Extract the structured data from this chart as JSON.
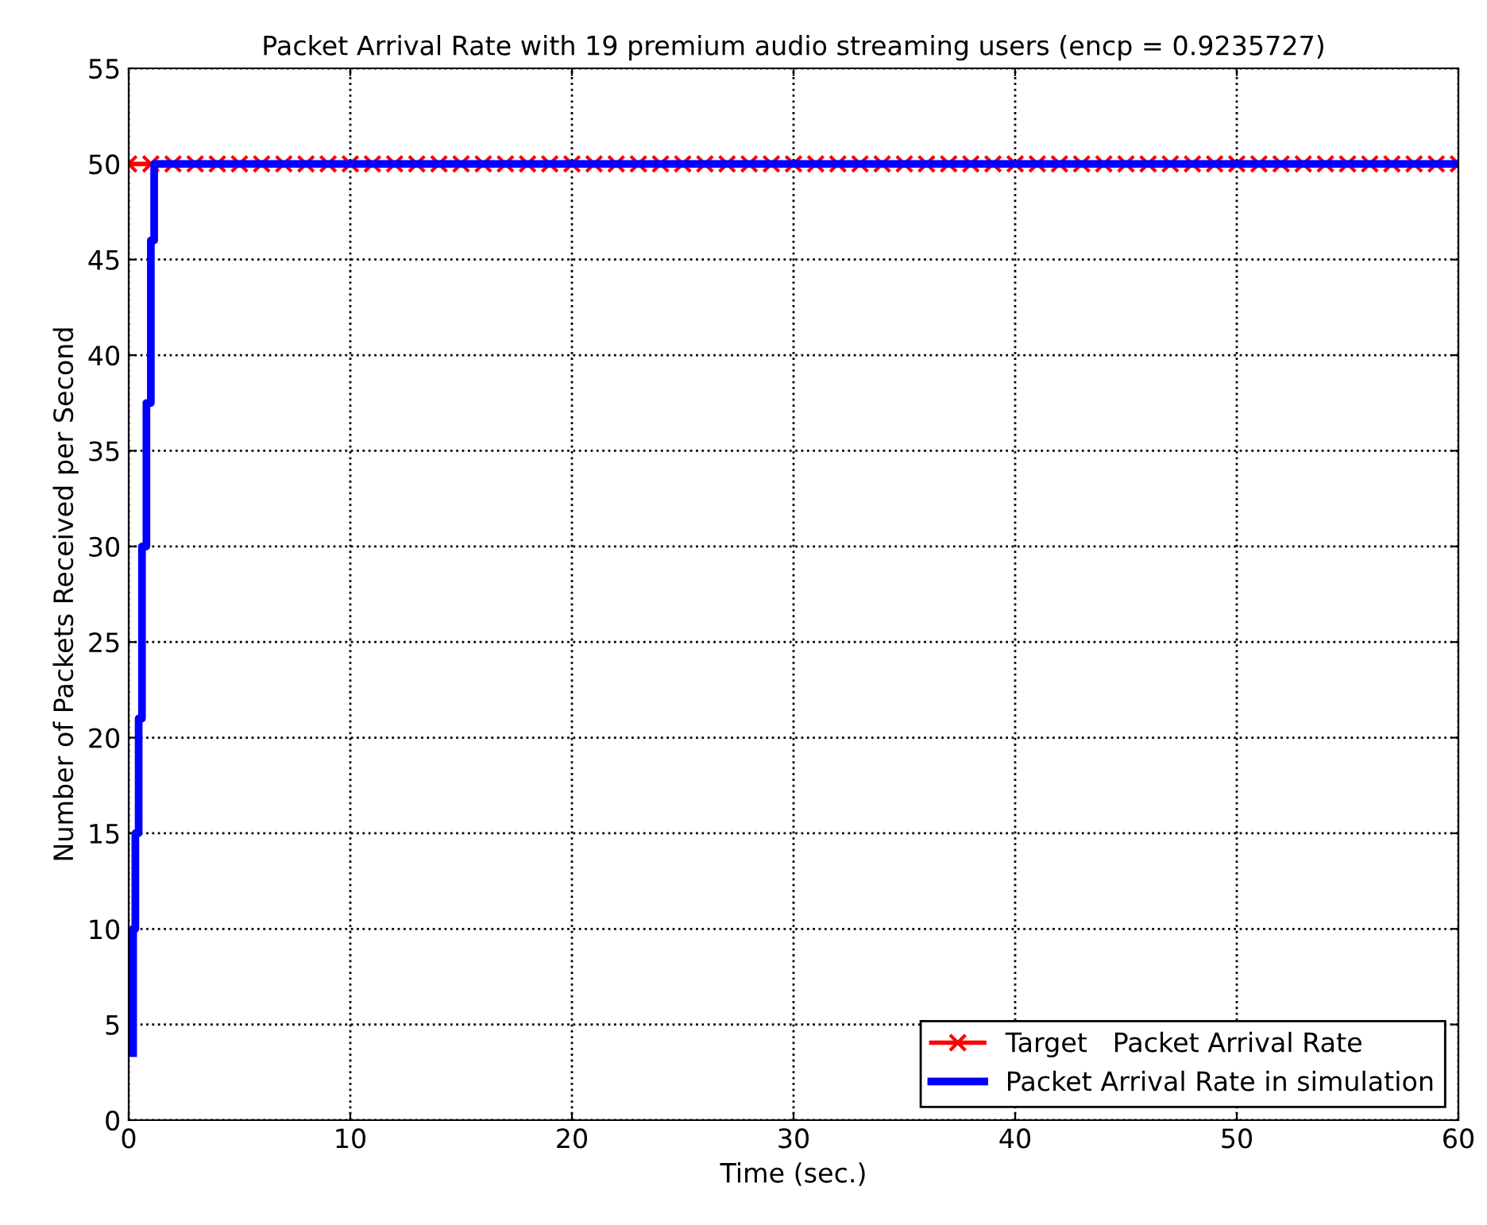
{
  "chart_data": {
    "type": "line",
    "title": "Packet Arrival Rate with 19 premium audio streaming users (encp = 0.9235727)",
    "xlabel": "Time (sec.)",
    "ylabel": "Number of Packets Received per Second",
    "series": [
      {
        "name": "Target   Packet Arrival Rate",
        "color": "#ff0000",
        "marker": "cross",
        "x": [
          0,
          1,
          2,
          3,
          4,
          5,
          6,
          7,
          8,
          9,
          10,
          11,
          12,
          13,
          14,
          15,
          16,
          17,
          18,
          19,
          20,
          21,
          22,
          23,
          24,
          25,
          26,
          27,
          28,
          29,
          30,
          31,
          32,
          33,
          34,
          35,
          36,
          37,
          38,
          39,
          40,
          41,
          42,
          43,
          44,
          45,
          46,
          47,
          48,
          49,
          50,
          51,
          52,
          53,
          54,
          55,
          56,
          57,
          58,
          59,
          60
        ],
        "values": [
          50,
          50,
          50,
          50,
          50,
          50,
          50,
          50,
          50,
          50,
          50,
          50,
          50,
          50,
          50,
          50,
          50,
          50,
          50,
          50,
          50,
          50,
          50,
          50,
          50,
          50,
          50,
          50,
          50,
          50,
          50,
          50,
          50,
          50,
          50,
          50,
          50,
          50,
          50,
          50,
          50,
          50,
          50,
          50,
          50,
          50,
          50,
          50,
          50,
          50,
          50,
          50,
          50,
          50,
          50,
          50,
          50,
          50,
          50,
          50,
          50
        ]
      },
      {
        "name": "Packet Arrival Rate in simulation",
        "color": "#0000ff",
        "marker": "none",
        "x": [
          0.2,
          0.2,
          0.3,
          0.3,
          0.45,
          0.45,
          0.6,
          0.6,
          0.8,
          0.8,
          1.0,
          1.0,
          1.15,
          1.15,
          60
        ],
        "values": [
          3.5,
          10,
          10,
          15,
          15,
          21,
          21,
          30,
          30,
          37.5,
          37.5,
          46,
          46,
          50,
          50
        ]
      }
    ],
    "xlim": [
      0,
      60
    ],
    "ylim": [
      0,
      55
    ],
    "xticks": [
      0,
      10,
      20,
      30,
      40,
      50,
      60
    ],
    "yticks": [
      0,
      5,
      10,
      15,
      20,
      25,
      30,
      35,
      40,
      45,
      50,
      55
    ],
    "grid": true,
    "legend": "bottom right",
    "line_style": "solid"
  }
}
